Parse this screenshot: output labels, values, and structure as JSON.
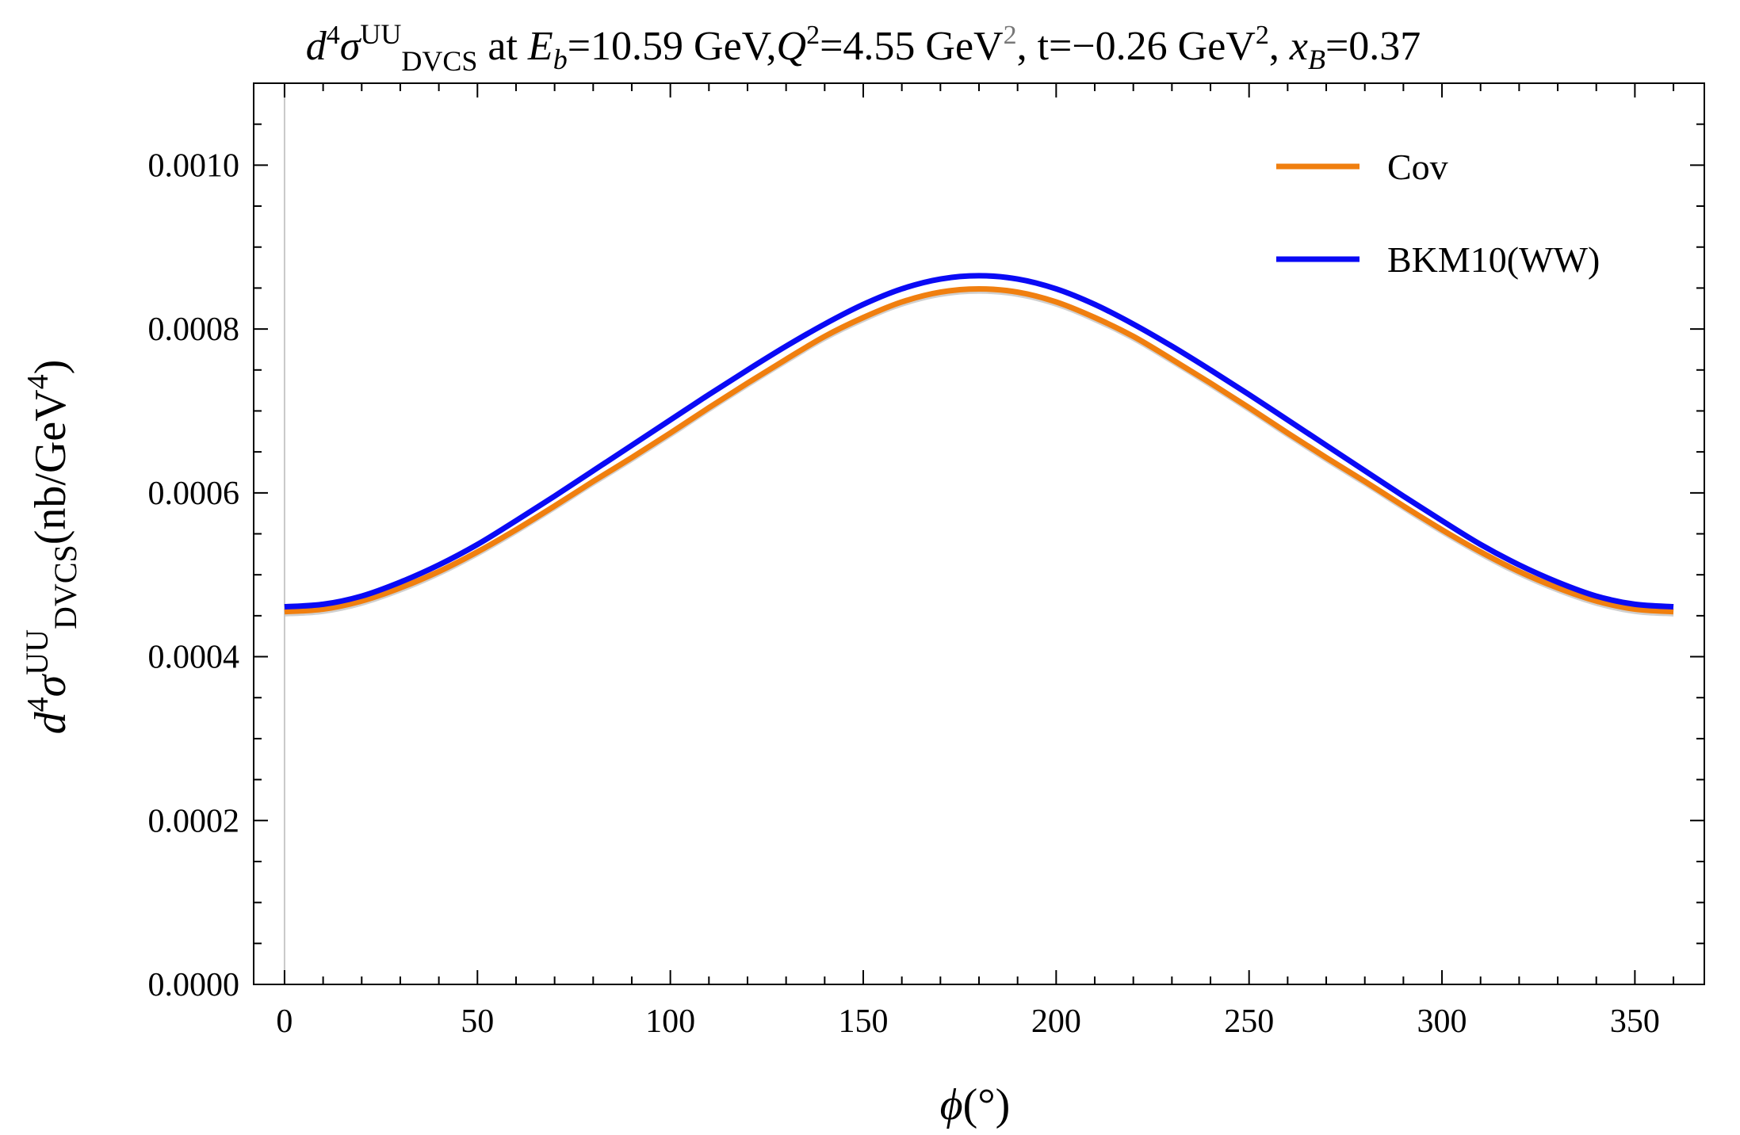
{
  "chart_data": {
    "type": "line",
    "title": {
      "quantity": "d",
      "order": "4",
      "sigma": "σ",
      "pol": "UU",
      "process": "DVCS",
      "at": " at ",
      "Eb_sym": "E",
      "Eb_sub": "b",
      "Eb_val": "=10.59 GeV,",
      "Q2_sym": "Q",
      "Q2_sup": "2",
      "Q2_val": "=4.55 GeV",
      "Q2_unit_sup": "2",
      "t_val": ", t=−0.26 GeV",
      "t_unit_sup": "2",
      "xB_sep": ", ",
      "xB_sym": "x",
      "xB_sub": "B",
      "xB_val": "=0.37"
    },
    "xlabel": {
      "sym": "ϕ",
      "unit": "(°)"
    },
    "ylabel": {
      "quantity": "d",
      "order": "4",
      "sigma": "σ",
      "pol": "UU",
      "process": "DVCS",
      "unit_open": "(nb/GeV",
      "unit_sup": "4",
      "unit_close": ")"
    },
    "xlim": [
      -8,
      368
    ],
    "ylim": [
      0,
      0.0011
    ],
    "xticks": [
      0,
      50,
      100,
      150,
      200,
      250,
      300,
      350
    ],
    "xtick_labels": [
      "0",
      "50",
      "100",
      "150",
      "200",
      "250",
      "300",
      "350"
    ],
    "yticks": [
      0,
      0.0002,
      0.0004,
      0.0006,
      0.0008,
      0.001
    ],
    "ytick_labels": [
      "0.0000",
      "0.0002",
      "0.0004",
      "0.0006",
      "0.0008",
      "0.0010"
    ],
    "x": [
      0,
      10,
      20,
      30,
      40,
      50,
      60,
      70,
      80,
      90,
      100,
      110,
      120,
      130,
      140,
      150,
      160,
      170,
      180,
      190,
      200,
      210,
      220,
      230,
      240,
      250,
      260,
      270,
      280,
      290,
      300,
      310,
      320,
      330,
      340,
      350,
      360
    ],
    "series": [
      {
        "name": "Cov",
        "color": "#F07F0F",
        "values": [
          0.000455,
          0.000458,
          0.000468,
          0.000484,
          0.000504,
          0.000528,
          0.000555,
          0.000584,
          0.000614,
          0.000643,
          0.000673,
          0.000704,
          0.000734,
          0.000763,
          0.000791,
          0.000814,
          0.000833,
          0.000845,
          0.000849,
          0.000845,
          0.000833,
          0.000814,
          0.000791,
          0.000763,
          0.000734,
          0.000704,
          0.000673,
          0.000643,
          0.000614,
          0.000584,
          0.000555,
          0.000528,
          0.000504,
          0.000484,
          0.000468,
          0.000458,
          0.000455
        ]
      },
      {
        "name": "BKM10(WW)",
        "color": "#0A0AF5",
        "values": [
          0.000461,
          0.000464,
          0.000474,
          0.000491,
          0.000512,
          0.000537,
          0.000566,
          0.000596,
          0.000627,
          0.000658,
          0.000689,
          0.00072,
          0.00075,
          0.000779,
          0.000806,
          0.00083,
          0.000849,
          0.000861,
          0.000865,
          0.000861,
          0.000849,
          0.00083,
          0.000806,
          0.000779,
          0.00075,
          0.00072,
          0.000689,
          0.000658,
          0.000627,
          0.000596,
          0.000566,
          0.000537,
          0.000512,
          0.000491,
          0.000474,
          0.000464,
          0.000461
        ]
      }
    ],
    "band": {
      "color": "#C8C8C8",
      "offset": 6e-06
    },
    "legend_position": "top-right"
  }
}
